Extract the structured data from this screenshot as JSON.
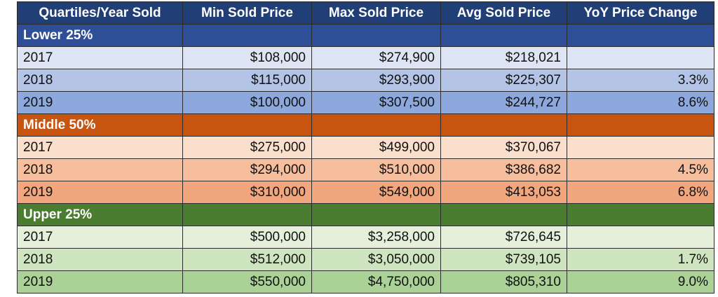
{
  "table": {
    "headers": [
      "Quartiles/Year Sold",
      "Min Sold Price",
      "Max Sold Price",
      "Avg Sold Price",
      "YoY Price Change"
    ],
    "groups": [
      {
        "label": "Lower 25%",
        "rows": [
          {
            "year": "2017",
            "min": "$108,000",
            "max": "$274,900",
            "avg": "$218,021",
            "yoy": ""
          },
          {
            "year": "2018",
            "min": "$115,000",
            "max": "$293,900",
            "avg": "$225,307",
            "yoy": "3.3%"
          },
          {
            "year": "2019",
            "min": "$100,000",
            "max": "$307,500",
            "avg": "$244,727",
            "yoy": "8.6%"
          }
        ]
      },
      {
        "label": "Middle 50%",
        "rows": [
          {
            "year": "2017",
            "min": "$275,000",
            "max": "$499,000",
            "avg": "$370,067",
            "yoy": ""
          },
          {
            "year": "2018",
            "min": "$294,000",
            "max": "$510,000",
            "avg": "$386,682",
            "yoy": "4.5%"
          },
          {
            "year": "2019",
            "min": "$310,000",
            "max": "$549,000",
            "avg": "$413,053",
            "yoy": "6.8%"
          }
        ]
      },
      {
        "label": "Upper 25%",
        "rows": [
          {
            "year": "2017",
            "min": "$500,000",
            "max": "$3,258,000",
            "avg": "$726,645",
            "yoy": ""
          },
          {
            "year": "2018",
            "min": "$512,000",
            "max": "$3,050,000",
            "avg": "$739,105",
            "yoy": "1.7%"
          },
          {
            "year": "2019",
            "min": "$550,000",
            "max": "$4,750,000",
            "avg": "$805,310",
            "yoy": "9.0%"
          }
        ]
      }
    ]
  },
  "colors": {
    "header": "#203f76",
    "lower": "#2f4e98",
    "middle": "#c7540f",
    "upper": "#4b7d30"
  }
}
